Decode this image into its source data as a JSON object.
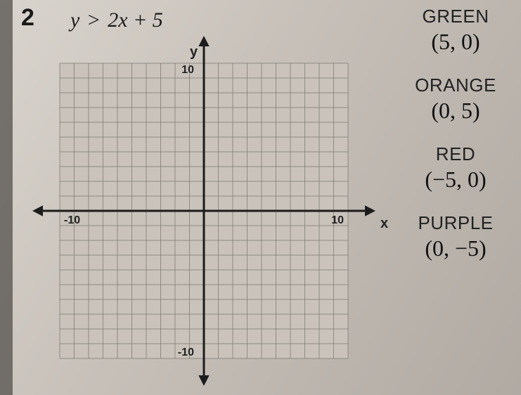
{
  "question": {
    "number": "2",
    "lhs": "y",
    "op": ">",
    "rhs": "2x + 5"
  },
  "graph": {
    "xmin": -10,
    "xmax": 10,
    "ymin": -10,
    "ymax": 10,
    "grid_step": 1,
    "grid_color": "#6b665f",
    "grid_width": 1,
    "axis_color": "#1c1c1c",
    "axis_width": 3,
    "background": "#c9c3bb",
    "x_label": "x",
    "y_label": "y",
    "tick_labels": {
      "x_pos": "10",
      "x_neg": "-10",
      "y_pos": "10",
      "y_neg": "-10"
    },
    "label_fontsize": 20,
    "tick_fontsize": 16,
    "arrow_size": 11
  },
  "answers": [
    {
      "label": "GREEN",
      "point": "(5, 0)"
    },
    {
      "label": "ORANGE",
      "point": "(0, 5)"
    },
    {
      "label": "RED",
      "point": "(−5, 0)"
    },
    {
      "label": "PURPLE",
      "point": "(0, −5)"
    }
  ]
}
